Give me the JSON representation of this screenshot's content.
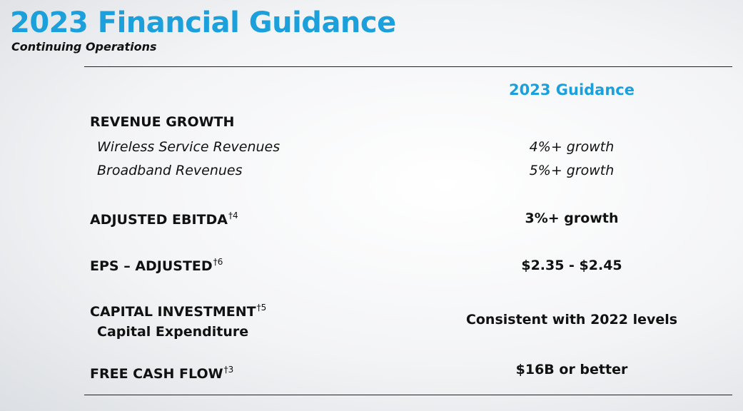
{
  "header": {
    "title": "2023 Financial Guidance",
    "subtitle": "Continuing Operations"
  },
  "table": {
    "column_header": "2023 Guidance",
    "revenue_growth": {
      "label": "REVENUE GROWTH",
      "items": [
        {
          "label": "Wireless Service Revenues",
          "value": "4%+ growth"
        },
        {
          "label": "Broadband Revenues",
          "value": "5%+ growth"
        }
      ]
    },
    "adjusted_ebitda": {
      "label": "ADJUSTED EBITDA",
      "note": "†4",
      "value": "3%+ growth"
    },
    "eps_adjusted": {
      "label": "EPS – ADJUSTED",
      "note": "†6",
      "value": "$2.35 - $2.45"
    },
    "capital_investment": {
      "label": "CAPITAL INVESTMENT",
      "note": "†5",
      "sub_label": "Capital Expenditure",
      "value": "Consistent with 2022 levels"
    },
    "free_cash_flow": {
      "label": "FREE CASH FLOW",
      "note": "†3",
      "value": "$16B or better"
    }
  }
}
